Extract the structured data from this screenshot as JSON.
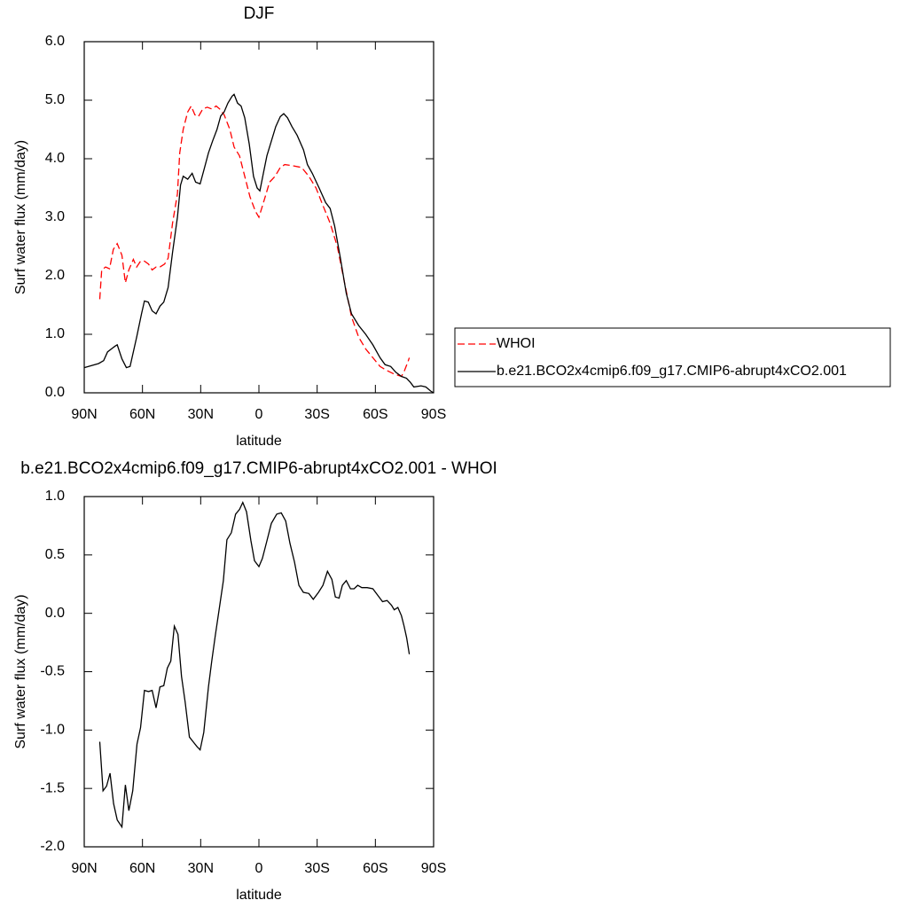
{
  "chart_data": [
    {
      "type": "line",
      "title": "DJF",
      "xlabel": "latitude",
      "ylabel": "Surf water flux (mm/day)",
      "xlim": [
        90,
        -90
      ],
      "xticks": [
        {
          "value": 90,
          "label": "90N"
        },
        {
          "value": 60,
          "label": "60N"
        },
        {
          "value": 30,
          "label": "30N"
        },
        0,
        {
          "value": -30,
          "label": "30S"
        },
        {
          "value": -60,
          "label": "60S"
        },
        {
          "value": -90,
          "label": "90S"
        }
      ],
      "ylim": [
        0,
        6
      ],
      "yticks": [
        {
          "value": 0,
          "label": "0.0"
        },
        {
          "value": 1,
          "label": "1.0"
        },
        {
          "value": 2,
          "label": "2.0"
        },
        {
          "value": 3,
          "label": "3.0"
        },
        {
          "value": 4,
          "label": "4.0"
        },
        {
          "value": 5,
          "label": "5.0"
        },
        {
          "value": 6,
          "label": "6.0"
        }
      ],
      "legend": "right",
      "series": [
        {
          "name": "WHOI",
          "color": "#ff0000",
          "linestyle": "dashed",
          "x": [
            82,
            81,
            79,
            77,
            75,
            73,
            70.6,
            68.8,
            67,
            64.7,
            63,
            61,
            59,
            56.9,
            55,
            53,
            51,
            48.6,
            46.8,
            44.5,
            42,
            40.8,
            39,
            36.7,
            34.9,
            33,
            31.2,
            28.9,
            26.6,
            24.3,
            22,
            20.2,
            17.9,
            15,
            12.8,
            10,
            7.3,
            4.6,
            1.8,
            0,
            -2.8,
            -5.5,
            -8.3,
            -11,
            -13.3,
            -17.4,
            -22,
            -25.7,
            -29.4,
            -33,
            -36.7,
            -40.4,
            -44,
            -47.7,
            -51.4,
            -55,
            -58.7,
            -62.4,
            -66,
            -69.7,
            -73.4,
            -75,
            -77,
            -77.5
          ],
          "values": [
            1.6,
            2.1,
            2.15,
            2.12,
            2.45,
            2.55,
            2.35,
            1.88,
            2.1,
            2.28,
            2.15,
            2.25,
            2.25,
            2.2,
            2.1,
            2.15,
            2.15,
            2.2,
            2.3,
            2.9,
            3.4,
            4.1,
            4.5,
            4.8,
            4.9,
            4.75,
            4.72,
            4.85,
            4.88,
            4.85,
            4.9,
            4.85,
            4.75,
            4.5,
            4.2,
            4.05,
            3.7,
            3.35,
            3.1,
            3.0,
            3.3,
            3.6,
            3.7,
            3.85,
            3.9,
            3.88,
            3.85,
            3.7,
            3.5,
            3.2,
            2.9,
            2.5,
            1.9,
            1.3,
            0.95,
            0.75,
            0.6,
            0.45,
            0.38,
            0.32,
            0.28,
            0.38,
            0.55,
            0.6
          ]
        },
        {
          "name": "b.e21.BCO2x4cmip6.f09_g17.CMIP6-abrupt4xCO2.001",
          "color": "#000000",
          "linestyle": "solid",
          "x": [
            90,
            82.6,
            80,
            78,
            74,
            73,
            70.6,
            68.3,
            66.4,
            63,
            60.5,
            59,
            57,
            55,
            53,
            51,
            49,
            46.8,
            44.5,
            42,
            40.4,
            39,
            36.7,
            34.4,
            32.6,
            30.3,
            28,
            26,
            23.9,
            21.6,
            19.7,
            17.9,
            16,
            13.8,
            12.8,
            11,
            9.2,
            7.3,
            5,
            2.8,
            0.9,
            -0.5,
            -2.3,
            -4.1,
            -6.4,
            -8.7,
            -11,
            -12.8,
            -14.7,
            -17,
            -19.7,
            -23,
            -25,
            -27.5,
            -31,
            -34.4,
            -36.7,
            -39,
            -42,
            -45,
            -47.7,
            -51.4,
            -55,
            -58.7,
            -62.4,
            -65,
            -67.9,
            -70.6,
            -73.4,
            -76,
            -78,
            -79.8,
            -83.5,
            -86,
            -88.5,
            -90
          ],
          "values": [
            0.43,
            0.5,
            0.55,
            0.7,
            0.8,
            0.82,
            0.58,
            0.43,
            0.45,
            0.95,
            1.35,
            1.57,
            1.55,
            1.4,
            1.35,
            1.48,
            1.55,
            1.8,
            2.4,
            3.0,
            3.55,
            3.7,
            3.65,
            3.75,
            3.6,
            3.57,
            3.85,
            4.1,
            4.3,
            4.5,
            4.73,
            4.8,
            4.95,
            5.07,
            5.1,
            4.95,
            4.9,
            4.7,
            4.25,
            3.7,
            3.5,
            3.45,
            3.75,
            4.05,
            4.3,
            4.55,
            4.72,
            4.77,
            4.7,
            4.55,
            4.4,
            4.15,
            3.9,
            3.75,
            3.5,
            3.25,
            3.15,
            2.85,
            2.3,
            1.7,
            1.35,
            1.15,
            1.0,
            0.82,
            0.6,
            0.48,
            0.45,
            0.35,
            0.28,
            0.25,
            0.18,
            0.1,
            0.12,
            0.1,
            0.03,
            0.0
          ]
        }
      ]
    },
    {
      "type": "line",
      "title": "b.e21.BCO2x4cmip6.f09_g17.CMIP6-abrupt4xCO2.001 - WHOI",
      "xlabel": "latitude",
      "ylabel": "Surf water flux (mm/day)",
      "xlim": [
        90,
        -90
      ],
      "xticks": [
        {
          "value": 90,
          "label": "90N"
        },
        {
          "value": 60,
          "label": "60N"
        },
        {
          "value": 30,
          "label": "30N"
        },
        0,
        {
          "value": -30,
          "label": "30S"
        },
        {
          "value": -60,
          "label": "60S"
        },
        {
          "value": -90,
          "label": "90S"
        }
      ],
      "ylim": [
        -2,
        1
      ],
      "yticks": [
        {
          "value": -2,
          "label": "-2.0"
        },
        {
          "value": -1.5,
          "label": "-1.5"
        },
        {
          "value": -1,
          "label": "-1.0"
        },
        -0.5,
        {
          "value": 0,
          "label": "0.0"
        },
        0.5,
        {
          "value": 1,
          "label": "1.0"
        }
      ],
      "series": [
        {
          "color": "#000000",
          "linestyle": "solid",
          "x": [
            82,
            80.3,
            78.5,
            76.7,
            74.9,
            73,
            70.6,
            68.8,
            67,
            65,
            62.8,
            61,
            59,
            56.9,
            55,
            53,
            51,
            49,
            47.2,
            45.4,
            43.6,
            41.7,
            39.9,
            38,
            35.8,
            33.9,
            32,
            30.3,
            28.4,
            26,
            24.3,
            22.5,
            20.6,
            18.3,
            16.5,
            14.2,
            12,
            10,
            8.3,
            6.4,
            4.1,
            2.3,
            0,
            -1.8,
            -4.1,
            -6.4,
            -9.2,
            -11.5,
            -13.8,
            -16,
            -18.3,
            -20.6,
            -22.9,
            -25.7,
            -28,
            -30.7,
            -33,
            -35.3,
            -37.6,
            -39.4,
            -41.3,
            -43,
            -45,
            -47.2,
            -49,
            -50.9,
            -53,
            -55.8,
            -58.7,
            -61.4,
            -63.7,
            -66,
            -68.3,
            -69.7,
            -71.6,
            -73.4,
            -74.8,
            -76.1,
            -77.5
          ],
          "values": [
            -1.1,
            -1.52,
            -1.48,
            -1.37,
            -1.63,
            -1.77,
            -1.83,
            -1.47,
            -1.69,
            -1.52,
            -1.12,
            -0.98,
            -0.66,
            -0.67,
            -0.66,
            -0.81,
            -0.63,
            -0.62,
            -0.47,
            -0.41,
            -0.11,
            -0.18,
            -0.54,
            -0.76,
            -1.06,
            -1.1,
            -1.14,
            -1.17,
            -1.02,
            -0.63,
            -0.41,
            -0.19,
            0.02,
            0.28,
            0.63,
            0.69,
            0.85,
            0.89,
            0.95,
            0.87,
            0.62,
            0.45,
            0.4,
            0.47,
            0.62,
            0.77,
            0.85,
            0.86,
            0.79,
            0.6,
            0.44,
            0.24,
            0.18,
            0.17,
            0.12,
            0.18,
            0.24,
            0.36,
            0.29,
            0.14,
            0.13,
            0.24,
            0.28,
            0.21,
            0.21,
            0.24,
            0.22,
            0.22,
            0.21,
            0.15,
            0.1,
            0.11,
            0.07,
            0.03,
            0.05,
            -0.02,
            -0.11,
            -0.21,
            -0.35
          ]
        }
      ]
    }
  ]
}
